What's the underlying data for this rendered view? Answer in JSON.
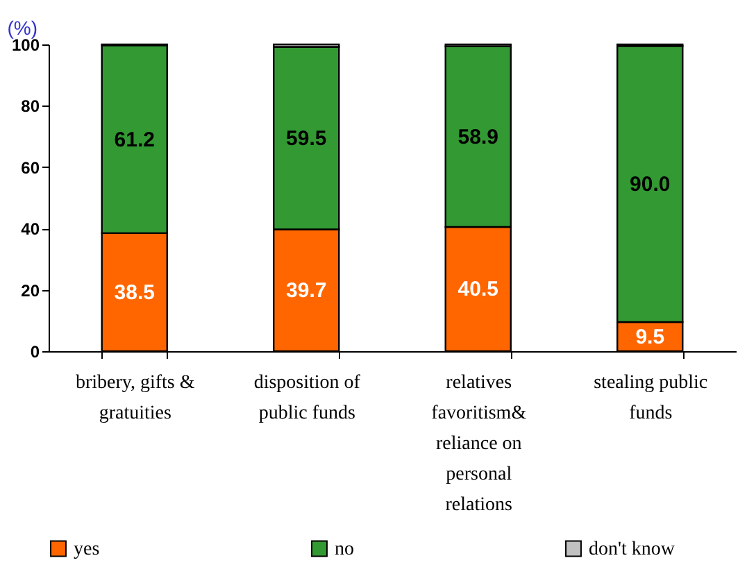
{
  "chart_data": {
    "type": "bar",
    "stacked": true,
    "ylabel": "(%)",
    "categories": [
      "bribery, gifts & gratuities",
      "disposition of public funds",
      "relatives favoritism& reliance on personal relations",
      "stealing public funds"
    ],
    "series": [
      {
        "name": "yes",
        "color": "#ff6600",
        "values": [
          38.5,
          39.7,
          40.5,
          9.5
        ],
        "value_labels": [
          "38.5",
          "39.7",
          "40.5",
          "9.5"
        ]
      },
      {
        "name": "no",
        "color": "#339933",
        "values": [
          61.2,
          59.5,
          58.9,
          90.0
        ],
        "value_labels": [
          "61.2",
          "59.5",
          "58.9",
          "90.0"
        ]
      },
      {
        "name": "don't know",
        "color": "#c0c0c0",
        "values": [
          0.3,
          0.8,
          0.6,
          0.5
        ]
      }
    ],
    "ylim": [
      0,
      100
    ],
    "yticks": [
      0,
      20,
      40,
      60,
      80,
      100
    ],
    "grid": false,
    "legend": "bottom"
  }
}
